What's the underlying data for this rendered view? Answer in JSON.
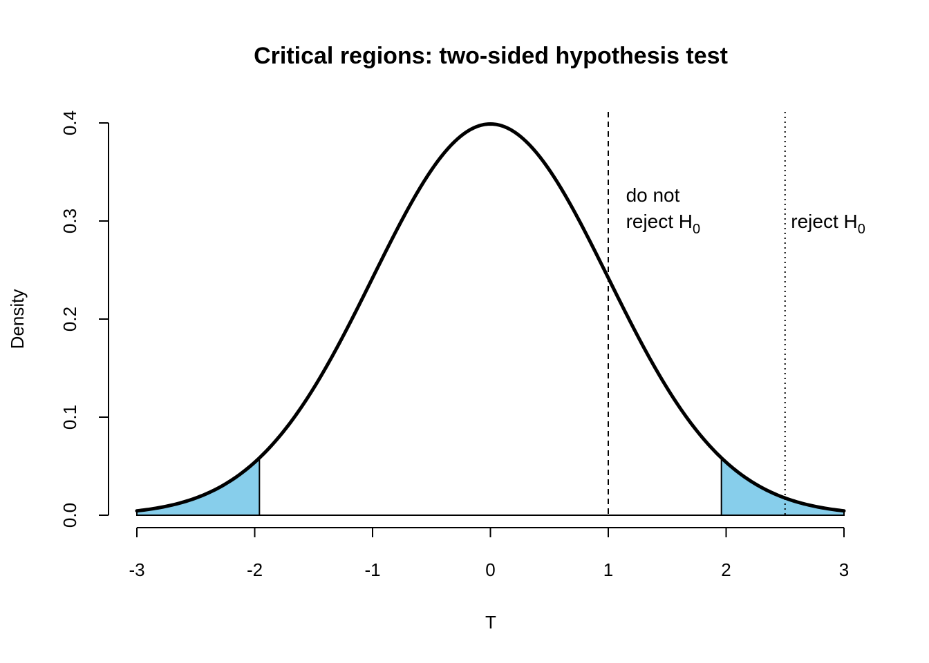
{
  "chart_data": {
    "type": "area",
    "title": "Critical regions: two-sided hypothesis test",
    "xlabel": "T",
    "ylabel": "Density",
    "xlim": [
      -3,
      3
    ],
    "ylim": [
      0,
      0.4
    ],
    "x_ticks": [
      "-3",
      "-2",
      "-1",
      "0",
      "1",
      "2",
      "3"
    ],
    "y_ticks": [
      "0.0",
      "0.1",
      "0.2",
      "0.3",
      "0.4"
    ],
    "curve": "standard normal density",
    "critical_values": [
      -1.96,
      1.96
    ],
    "shade_color": "#87ceeb",
    "reference_lines": [
      {
        "x": 1,
        "style": "dashed"
      },
      {
        "x": 2.5,
        "style": "dotted"
      }
    ],
    "annotations": [
      {
        "x": 1.15,
        "lines": [
          "do not",
          "reject H"
        ],
        "subscript": "0"
      },
      {
        "x": 2.55,
        "lines": [
          "reject H"
        ],
        "subscript": "0"
      }
    ]
  }
}
